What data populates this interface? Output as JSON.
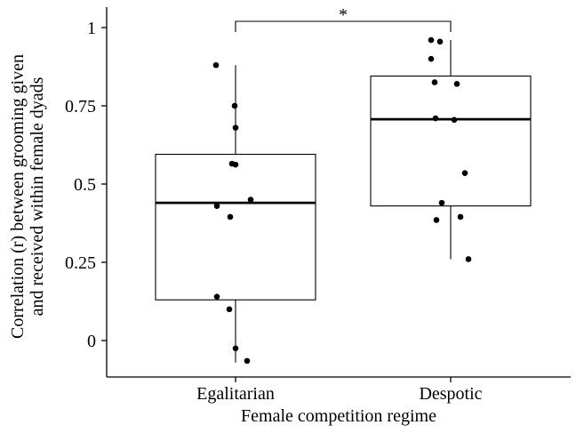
{
  "chart_data": {
    "type": "box",
    "xlabel": "Female competition regime",
    "ylabel_line1": "Correlation (r) between grooming given",
    "ylabel_line2": "and received within female dyads",
    "ylim": [
      -0.12,
      1.08
    ],
    "yticks": [
      0,
      0.25,
      0.5,
      0.75,
      1
    ],
    "ytick_labels": [
      "0",
      "0.25",
      "0.5",
      "0.75",
      "1"
    ],
    "categories": [
      "Egalitarian",
      "Despotic"
    ],
    "grid": false,
    "legend": "none",
    "significance": {
      "between": [
        "Egalitarian",
        "Despotic"
      ],
      "label": "*"
    },
    "series": [
      {
        "category": "Egalitarian",
        "whisker_low": -0.07,
        "q1": 0.13,
        "median": 0.44,
        "q3": 0.595,
        "whisker_high": 0.88,
        "points": [
          0.88,
          0.75,
          0.68,
          0.565,
          0.562,
          0.45,
          0.43,
          0.395,
          0.14,
          0.1,
          -0.025,
          -0.065
        ]
      },
      {
        "category": "Despotic",
        "whisker_low": 0.26,
        "q1": 0.43,
        "median": 0.707,
        "q3": 0.845,
        "whisker_high": 0.96,
        "points": [
          0.96,
          0.955,
          0.9,
          0.825,
          0.82,
          0.71,
          0.705,
          0.535,
          0.44,
          0.395,
          0.385,
          0.26
        ]
      }
    ]
  }
}
